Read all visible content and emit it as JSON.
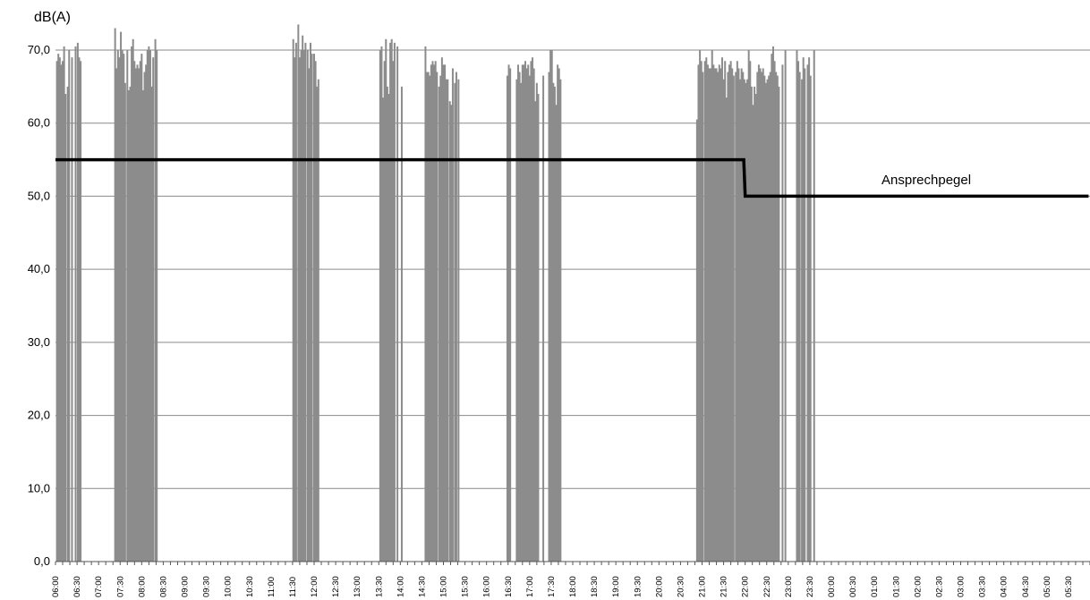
{
  "chart_data": {
    "type": "bar",
    "ylabel": "dB(A)",
    "ylim": [
      0,
      75
    ],
    "yticks": [
      "0,0",
      "10,0",
      "20,0",
      "30,0",
      "40,0",
      "50,0",
      "60,0",
      "70,0"
    ],
    "grid": true,
    "xticks": [
      "06:00",
      "06:30",
      "07:00",
      "07:30",
      "08:00",
      "08:30",
      "09:00",
      "09:30",
      "10:00",
      "10:30",
      "11:00",
      "11:30",
      "12:00",
      "12:30",
      "13:00",
      "13:30",
      "14:00",
      "14:30",
      "15:00",
      "15:30",
      "16:00",
      "16:30",
      "17:00",
      "17:30",
      "18:00",
      "18:30",
      "19:00",
      "19:30",
      "20:00",
      "20:30",
      "21:00",
      "21:30",
      "22:00",
      "22:30",
      "23:00",
      "23:30",
      "00:00",
      "00:30",
      "01:00",
      "01:30",
      "02:00",
      "02:30",
      "03:00",
      "03:30",
      "04:00",
      "04:30",
      "05:00",
      "05:30"
    ],
    "bar_color": "#8c8c8c",
    "series": [
      {
        "type": "bar",
        "x": [
          "06:02",
          "06:04",
          "06:06",
          "06:08",
          "06:10",
          "06:12",
          "06:14",
          "06:17",
          "06:19",
          "06:23",
          "06:28",
          "06:31",
          "06:33",
          "06:35",
          "07:23",
          "07:25",
          "07:27",
          "07:29",
          "07:31",
          "07:33",
          "07:35",
          "07:37",
          "07:40",
          "07:42",
          "07:44",
          "07:46",
          "07:48",
          "07:50",
          "07:52",
          "07:54",
          "07:56",
          "07:58",
          "08:00",
          "08:02",
          "08:04",
          "08:06",
          "08:08",
          "08:10",
          "08:12",
          "08:14",
          "08:16",
          "08:19",
          "08:21",
          "11:31",
          "11:33",
          "11:35",
          "11:38",
          "11:40",
          "11:42",
          "11:44",
          "11:46",
          "11:48",
          "11:51",
          "11:53",
          "11:55",
          "11:57",
          "12:00",
          "12:02",
          "12:04",
          "12:06",
          "13:32",
          "13:34",
          "13:36",
          "13:38",
          "13:40",
          "13:42",
          "13:44",
          "13:46",
          "13:48",
          "13:50",
          "13:52",
          "13:56",
          "14:02",
          "14:35",
          "14:37",
          "14:39",
          "14:41",
          "14:43",
          "14:45",
          "14:47",
          "14:49",
          "14:51",
          "14:54",
          "14:56",
          "14:58",
          "15:00",
          "15:02",
          "15:04",
          "15:06",
          "15:09",
          "15:11",
          "15:13",
          "15:16",
          "15:18",
          "15:21",
          "16:29",
          "16:31",
          "16:33",
          "16:42",
          "16:44",
          "16:46",
          "16:48",
          "16:50",
          "16:52",
          "16:54",
          "16:56",
          "16:58",
          "17:00",
          "17:02",
          "17:04",
          "17:06",
          "17:08",
          "17:10",
          "17:12",
          "17:19",
          "17:27",
          "17:29",
          "17:31",
          "17:33",
          "17:35",
          "17:37",
          "17:39",
          "17:41",
          "17:43",
          "20:53",
          "20:55",
          "20:57",
          "20:59",
          "21:01",
          "21:04",
          "21:06",
          "21:08",
          "21:10",
          "21:12",
          "21:14",
          "21:16",
          "21:18",
          "21:20",
          "21:22",
          "21:24",
          "21:26",
          "21:28",
          "21:30",
          "21:32",
          "21:34",
          "21:36",
          "21:38",
          "21:40",
          "21:42",
          "21:44",
          "21:47",
          "21:49",
          "21:51",
          "21:53",
          "21:55",
          "21:57",
          "21:59",
          "22:01",
          "22:03",
          "22:05",
          "22:07",
          "22:09",
          "22:11",
          "22:13",
          "22:15",
          "22:17",
          "22:19",
          "22:21",
          "22:23",
          "22:25",
          "22:27",
          "22:29",
          "22:31",
          "22:33",
          "22:35",
          "22:37",
          "22:39",
          "22:41",
          "22:43",
          "22:45",
          "22:47",
          "22:52",
          "22:56",
          "23:12",
          "23:14",
          "23:16",
          "23:19",
          "23:21",
          "23:23",
          "23:27",
          "23:29",
          "23:31",
          "23:36"
        ],
        "values": [
          68.5,
          69.5,
          69.0,
          68.0,
          68.5,
          70.5,
          64.0,
          65.0,
          70.0,
          69.0,
          70.5,
          71.0,
          69.0,
          68.5,
          73.0,
          67.5,
          70.0,
          69.0,
          72.5,
          70.0,
          69.5,
          65.5,
          70.0,
          64.5,
          65.0,
          70.5,
          71.5,
          68.5,
          67.5,
          68.0,
          67.5,
          68.5,
          69.5,
          64.5,
          67.0,
          68.0,
          70.0,
          70.5,
          70.0,
          65.0,
          69.0,
          71.5,
          70.0,
          71.5,
          69.0,
          71.0,
          73.5,
          69.0,
          70.0,
          72.0,
          70.0,
          71.0,
          70.0,
          67.5,
          71.0,
          69.5,
          69.5,
          68.5,
          65.0,
          66.0,
          70.0,
          70.5,
          63.5,
          68.5,
          71.5,
          65.0,
          64.0,
          71.0,
          71.5,
          68.5,
          71.0,
          70.5,
          65.0,
          70.5,
          67.0,
          67.0,
          66.5,
          68.0,
          68.5,
          68.0,
          68.5,
          67.0,
          65.0,
          66.5,
          69.0,
          68.0,
          68.0,
          66.0,
          66.0,
          63.0,
          62.5,
          67.5,
          65.5,
          67.0,
          66.0,
          66.5,
          68.0,
          67.5,
          66.0,
          68.0,
          67.0,
          65.5,
          68.0,
          68.0,
          68.5,
          67.5,
          68.0,
          66.5,
          68.5,
          69.0,
          67.5,
          63.0,
          65.5,
          64.0,
          66.5,
          67.0,
          70.0,
          70.0,
          65.5,
          65.0,
          62.5,
          68.0,
          67.5,
          66.0,
          60.5,
          68.0,
          70.0,
          68.5,
          67.0,
          68.5,
          69.0,
          68.0,
          67.5,
          67.5,
          70.0,
          68.0,
          67.5,
          67.5,
          67.0,
          68.0,
          67.5,
          69.0,
          66.0,
          68.5,
          63.5,
          67.0,
          68.0,
          68.5,
          67.5,
          66.5,
          67.0,
          68.5,
          67.5,
          66.0,
          67.5,
          67.0,
          66.0,
          65.5,
          66.0,
          70.0,
          68.5,
          65.0,
          62.5,
          65.0,
          64.0,
          67.0,
          68.0,
          67.5,
          67.0,
          67.5,
          66.5,
          65.5,
          66.0,
          66.5,
          67.0,
          69.5,
          70.5,
          68.5,
          67.0,
          66.5,
          65.0,
          68.0,
          70.0,
          70.0,
          68.5,
          67.0,
          66.0,
          69.0,
          67.5,
          68.0,
          69.0,
          66.5,
          70.0
        ]
      },
      {
        "type": "line",
        "name": "Ansprechpegel",
        "color": "#000000",
        "points": [
          [
            "06:00",
            55.0
          ],
          [
            "21:58",
            55.0
          ],
          [
            "22:00",
            50.0
          ],
          [
            "05:58",
            50.0
          ]
        ]
      }
    ],
    "annotations": [
      {
        "text": "Ansprechpegel"
      }
    ]
  }
}
